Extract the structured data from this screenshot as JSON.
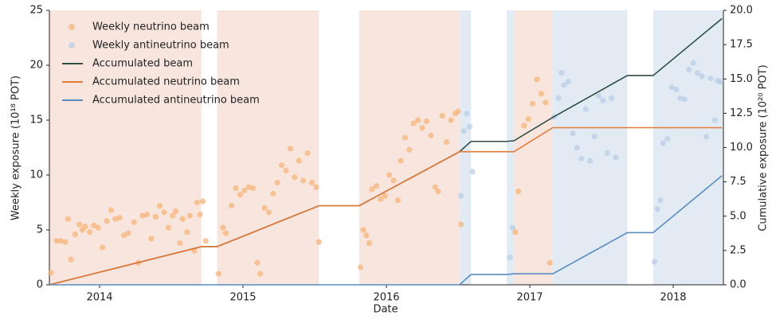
{
  "chart_data": {
    "type": "combo",
    "xlabel": "Date",
    "ylabel": "Weekly exposure (10¹⁸ POT)",
    "y2label": "Cumulative exposure (10²⁰ POT)",
    "xlim": [
      2013.65,
      2018.35
    ],
    "xticks": [
      2014,
      2015,
      2016,
      2017,
      2018
    ],
    "ylim": [
      0,
      25
    ],
    "yticks": [
      0,
      5,
      10,
      15,
      20,
      25
    ],
    "y2lim": [
      0,
      20
    ],
    "y2ticks": [
      {
        "value": 0,
        "label": "0.0"
      },
      2.5,
      {
        "value": 5,
        "label": "5.0"
      },
      7.5,
      {
        "value": 10,
        "label": "10.0"
      },
      12.5,
      {
        "value": 15,
        "label": "15.0"
      },
      17.5,
      {
        "value": 20,
        "label": "20.0"
      }
    ],
    "legend": "upper left",
    "spans": [
      {
        "color": "#f8e5de",
        "ranges": [
          [
            2013.65,
            2014.71
          ],
          [
            2014.82,
            2015.53
          ],
          [
            2015.81,
            2016.51
          ],
          [
            2016.89,
            2017.16
          ]
        ]
      },
      {
        "color": "#e2eaf4",
        "ranges": [
          [
            2016.51,
            2016.59
          ],
          [
            2016.84,
            2016.89
          ],
          [
            2017.16,
            2017.68
          ],
          [
            2017.86,
            2018.35
          ]
        ]
      }
    ],
    "series": [
      {
        "name": "Weekly neutrino beam",
        "type": "scatter",
        "color": "#f6b47a",
        "x": [
          2013.66,
          2013.7,
          2013.73,
          2013.76,
          2013.78,
          2013.8,
          2013.83,
          2013.86,
          2013.88,
          2013.9,
          2013.93,
          2013.96,
          2013.99,
          2014.02,
          2014.05,
          2014.08,
          2014.11,
          2014.14,
          2014.17,
          2014.2,
          2014.24,
          2014.27,
          2014.3,
          2014.33,
          2014.36,
          2014.39,
          2014.42,
          2014.45,
          2014.48,
          2014.51,
          2014.53,
          2014.56,
          2014.58,
          2014.61,
          2014.63,
          2014.66,
          2014.68,
          2014.7,
          2014.72,
          2014.74,
          2014.83,
          2014.86,
          2014.88,
          2014.92,
          2014.95,
          2014.98,
          2015.01,
          2015.04,
          2015.07,
          2015.1,
          2015.12,
          2015.15,
          2015.18,
          2015.21,
          2015.24,
          2015.27,
          2015.3,
          2015.33,
          2015.36,
          2015.39,
          2015.42,
          2015.45,
          2015.48,
          2015.51,
          2015.53,
          2015.82,
          2015.84,
          2015.86,
          2015.88,
          2015.9,
          2015.93,
          2015.96,
          2015.99,
          2016.02,
          2016.05,
          2016.08,
          2016.1,
          2016.13,
          2016.16,
          2016.19,
          2016.22,
          2016.25,
          2016.28,
          2016.31,
          2016.34,
          2016.36,
          2016.39,
          2016.42,
          2016.45,
          2016.48,
          2016.5,
          2016.52,
          2016.9,
          2016.92,
          2016.96,
          2016.99,
          2017.02,
          2017.05,
          2017.08,
          2017.11,
          2017.14
        ],
        "values": [
          1.1,
          4.0,
          4.0,
          3.9,
          6.0,
          2.3,
          4.6,
          5.5,
          5.0,
          5.3,
          4.8,
          5.4,
          5.2,
          3.4,
          5.8,
          6.8,
          6.0,
          6.1,
          4.5,
          4.7,
          5.7,
          2.0,
          6.3,
          6.4,
          4.2,
          6.2,
          7.2,
          6.6,
          5.2,
          6.3,
          6.7,
          3.8,
          6.0,
          4.8,
          6.3,
          3.1,
          7.5,
          6.4,
          7.6,
          4.0,
          1.0,
          5.2,
          4.7,
          7.2,
          8.8,
          8.2,
          8.6,
          8.9,
          8.8,
          2.0,
          1.0,
          7.0,
          6.6,
          8.3,
          9.3,
          10.9,
          10.4,
          12.4,
          9.8,
          11.3,
          9.5,
          12.0,
          9.3,
          8.9,
          3.9,
          1.6,
          5.0,
          4.5,
          3.8,
          8.7,
          9.0,
          7.8,
          8.1,
          10.0,
          9.5,
          7.7,
          11.3,
          13.4,
          12.3,
          14.7,
          15.0,
          14.3,
          14.9,
          13.6,
          8.9,
          8.5,
          15.4,
          13.0,
          15.0,
          15.6,
          15.8,
          5.5,
          4.8,
          8.5,
          14.5,
          15.1,
          16.5,
          18.7,
          17.4,
          16.6,
          2.0
        ]
      },
      {
        "name": "Weekly antineutrino beam",
        "type": "scatter",
        "color": "#b9cee6",
        "x": [
          2016.52,
          2016.54,
          2016.56,
          2016.58,
          2016.6,
          2016.86,
          2016.88,
          2017.17,
          2017.2,
          2017.22,
          2017.24,
          2017.27,
          2017.3,
          2017.33,
          2017.36,
          2017.39,
          2017.42,
          2017.45,
          2017.48,
          2017.51,
          2017.54,
          2017.57,
          2017.6,
          2017.87,
          2017.89,
          2017.91,
          2017.93,
          2017.96,
          2017.99,
          2018.02,
          2018.05,
          2018.08,
          2018.11,
          2018.14,
          2018.17,
          2018.2,
          2018.23,
          2018.26,
          2018.29,
          2018.31,
          2018.33
        ],
        "values": [
          8.1,
          14.0,
          15.6,
          14.4,
          10.3,
          2.5,
          5.2,
          15.3,
          17.0,
          19.3,
          18.2,
          18.5,
          13.8,
          12.5,
          11.5,
          16.0,
          11.3,
          13.5,
          17.2,
          16.8,
          12.0,
          17.0,
          11.6,
          2.1,
          6.9,
          7.7,
          12.9,
          13.3,
          18.0,
          17.8,
          17.0,
          16.9,
          19.6,
          20.2,
          19.3,
          19.0,
          13.5,
          18.8,
          15.0,
          18.6,
          18.5
        ]
      },
      {
        "name": "Accumulated beam",
        "type": "line",
        "axis": "y2",
        "color": "#2e4e44",
        "x": [
          2013.65,
          2014.71,
          2014.82,
          2015.53,
          2015.81,
          2016.51,
          2016.59,
          2016.84,
          2016.89,
          2017.16,
          2017.68,
          2017.86,
          2018.34
        ],
        "values": [
          0,
          2.78,
          2.78,
          5.76,
          5.76,
          9.7,
          10.45,
          10.45,
          10.5,
          12.2,
          15.25,
          15.25,
          19.4
        ]
      },
      {
        "name": "Accumulated neutrino beam",
        "type": "line",
        "axis": "y2",
        "color": "#e27b38",
        "x": [
          2013.65,
          2014.71,
          2014.82,
          2015.53,
          2015.81,
          2016.51,
          2016.89,
          2017.16,
          2018.34
        ],
        "values": [
          0,
          2.78,
          2.78,
          5.76,
          5.76,
          9.7,
          9.7,
          11.45,
          11.45
        ]
      },
      {
        "name": "Accumulated antineutrino beam",
        "type": "line",
        "axis": "y2",
        "color": "#5a8cbf",
        "x": [
          2013.65,
          2016.51,
          2016.59,
          2016.84,
          2016.89,
          2017.16,
          2017.68,
          2017.86,
          2018.34
        ],
        "values": [
          0,
          0,
          0.75,
          0.75,
          0.8,
          0.8,
          3.8,
          3.8,
          7.95
        ]
      }
    ]
  }
}
